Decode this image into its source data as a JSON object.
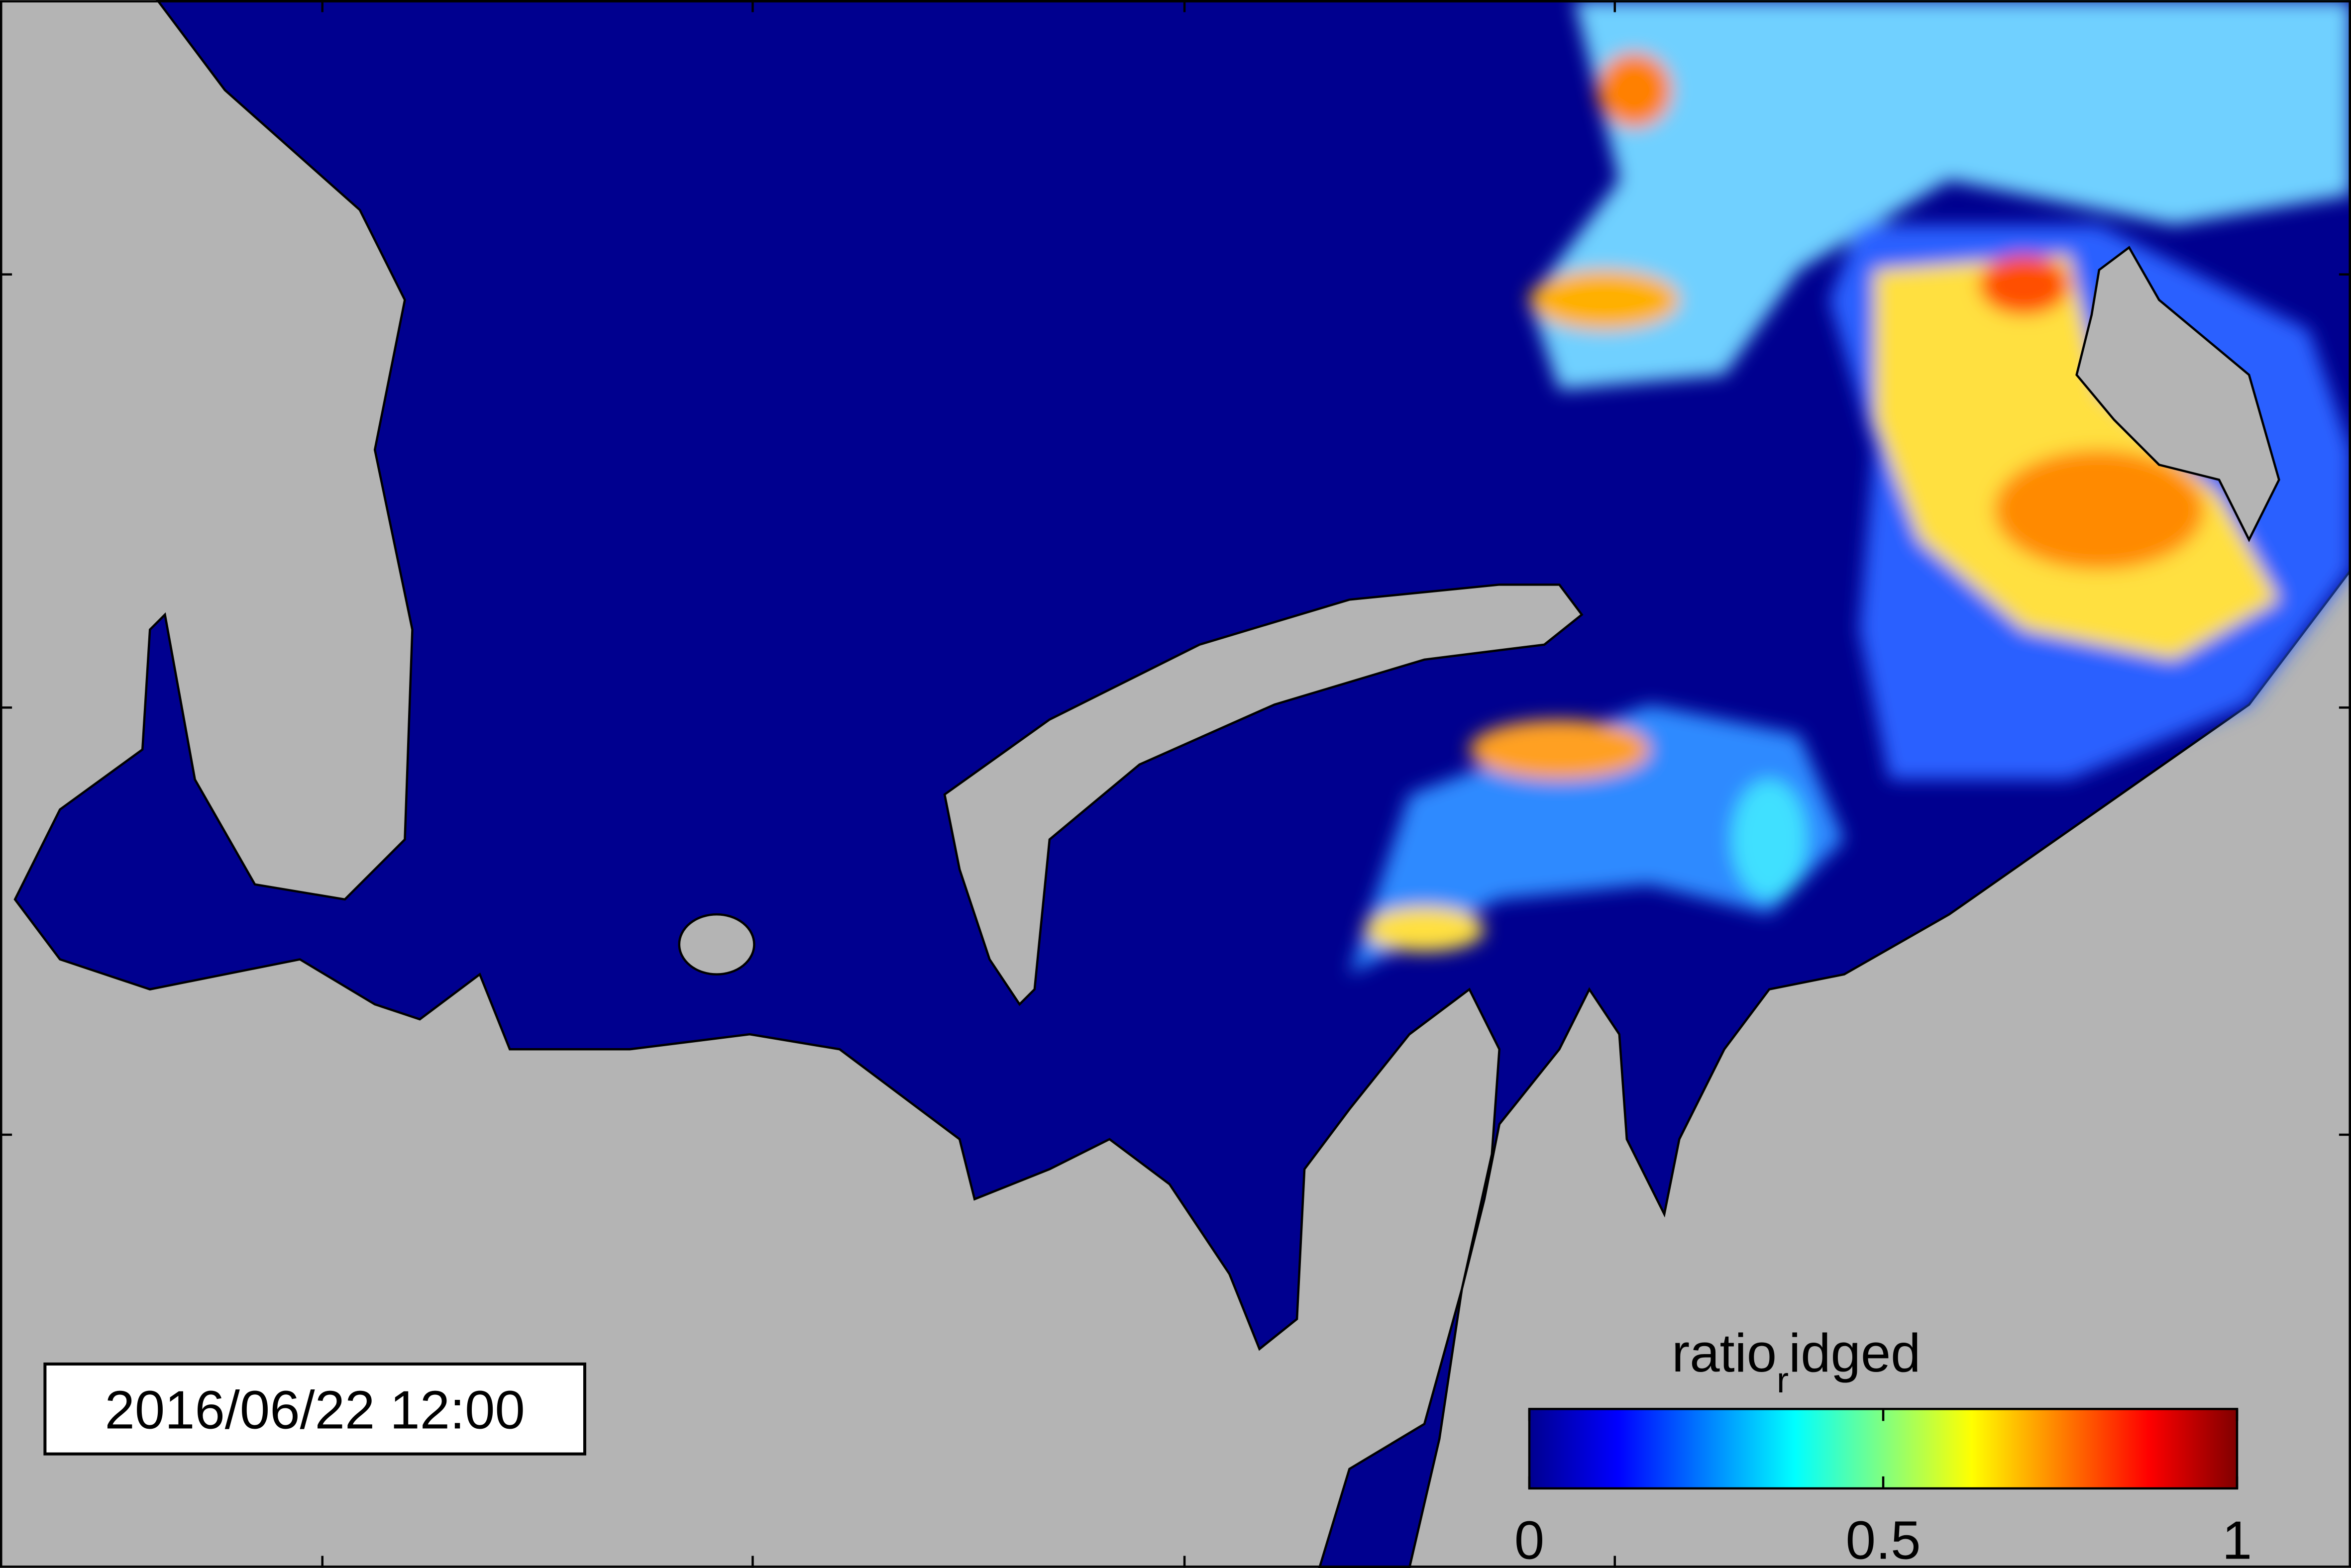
{
  "timestamp": "2016/06/22 12:00",
  "colorbar": {
    "label": [
      "ratio",
      "r",
      "idged"
    ],
    "colormap": "jet",
    "lim": [
      0,
      1
    ],
    "ticks": [
      0,
      0.5,
      1
    ]
  }
}
